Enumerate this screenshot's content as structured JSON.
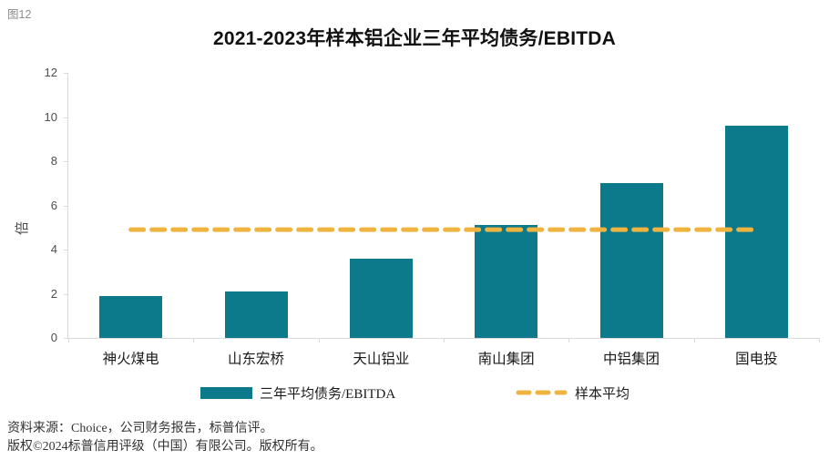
{
  "figure_label": "图12",
  "title": "2021-2023年样本铝企业三年平均债务/EBITDA",
  "chart_data": {
    "type": "bar",
    "title": "2021-2023年样本铝企业三年平均债务/EBITDA",
    "categories": [
      "神火煤电",
      "山东宏桥",
      "天山铝业",
      "南山集团",
      "中铝集团",
      "国电投"
    ],
    "series": [
      {
        "name": "三年平均债务/EBITDA",
        "type": "bar",
        "color": "#0d7a8c",
        "values": [
          1.9,
          2.1,
          3.6,
          5.1,
          7.0,
          9.6
        ]
      },
      {
        "name": "样本平均",
        "type": "dashed-line",
        "color": "#efb440",
        "value": 4.9
      }
    ],
    "xlabel": "",
    "ylabel": "倍",
    "ylim": [
      0,
      12
    ],
    "ytick_step": 2,
    "grid": false,
    "legend_position": "bottom"
  },
  "legend": {
    "bar_label": "三年平均债务/EBITDA",
    "line_label": "样本平均"
  },
  "footer": {
    "line1": "资料来源：Choice，公司财务报告，标普信评。",
    "line2": "版权©2024标普信用评级（中国）有限公司。版权所有。"
  },
  "colors": {
    "bar": "#0d7a8c",
    "average_line": "#efb440",
    "axis": "#d9d9d9",
    "tick_text": "#4d4d4d",
    "title_text": "#111111",
    "figure_label_text": "#8c8c8c",
    "footer_text": "#333333"
  }
}
